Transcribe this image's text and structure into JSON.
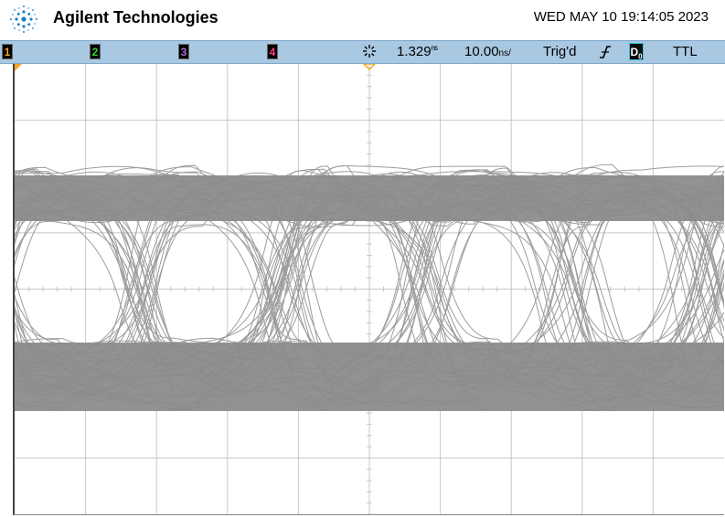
{
  "header": {
    "brand": "Agilent Technologies",
    "datetime": "WED MAY 10 19:14:05 2023",
    "logo_icon": "agilent-spark-logo"
  },
  "status": {
    "channels": [
      {
        "label": "1",
        "color": "#f5a623"
      },
      {
        "label": "2",
        "color": "#35d43a"
      },
      {
        "label": "3",
        "color": "#b06bd8"
      },
      {
        "label": "4",
        "color": "#ff3f8f"
      }
    ],
    "run_icon": "acquisition-run-icon",
    "time_delay": "1.329",
    "time_delay_unit": "ns",
    "time_div": "10.00",
    "time_div_unit": "ns/",
    "trigger_state": "Trig'd",
    "trigger_slope_icon": "falling-edge-icon",
    "trigger_source": "D",
    "trigger_source_sub": "0",
    "trigger_level": "TTL"
  },
  "display": {
    "trace_color": "#8c8c8c",
    "grid_color": "#c8c8c8",
    "marker_color": "#f5a623"
  }
}
